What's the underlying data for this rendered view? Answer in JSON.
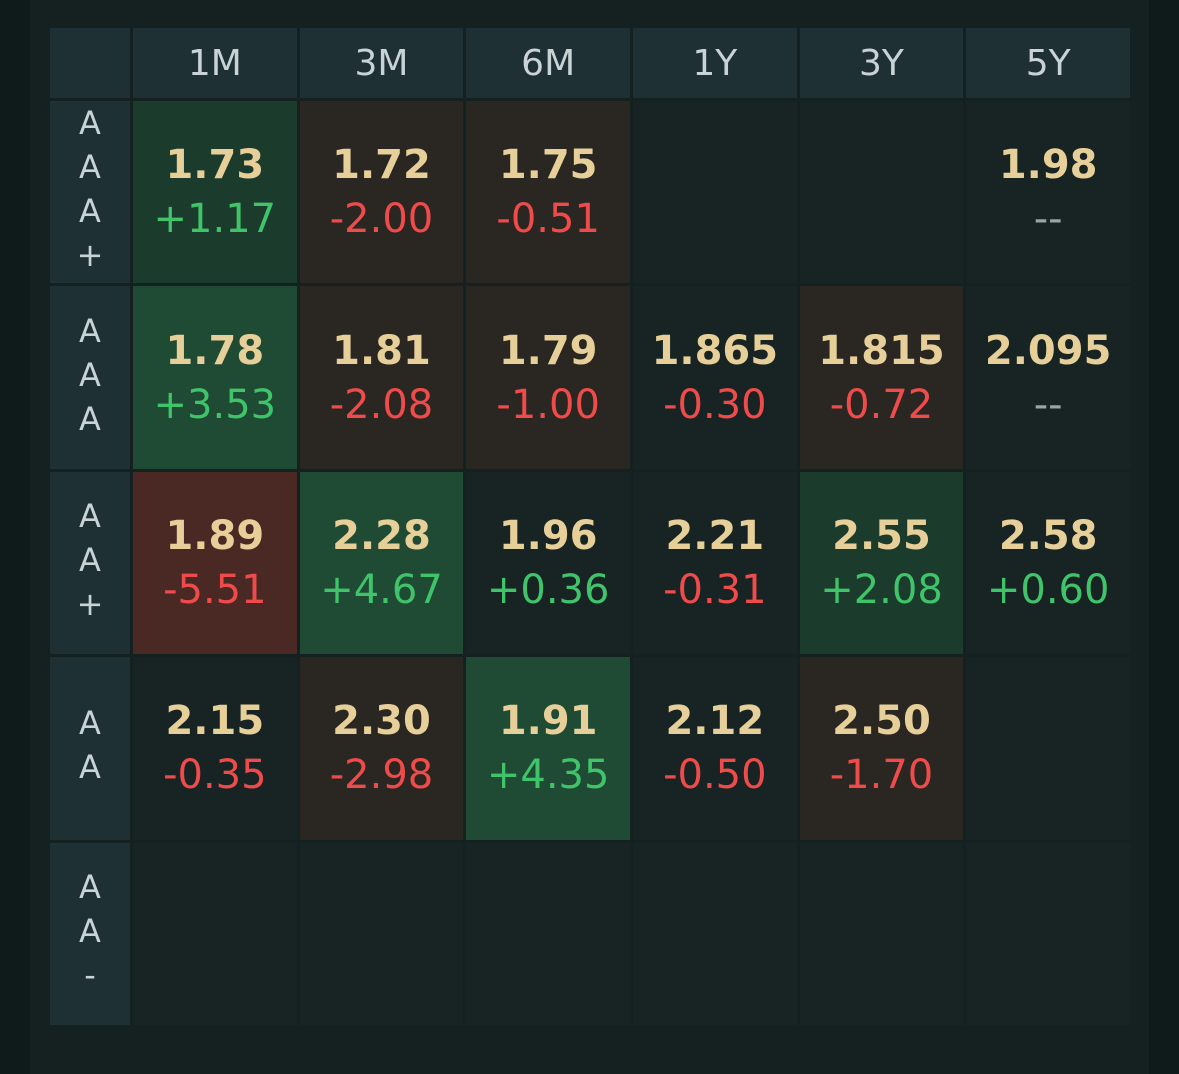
{
  "columns": [
    "1M",
    "3M",
    "6M",
    "1Y",
    "3Y",
    "5Y"
  ],
  "rows": [
    {
      "label": "AAA+",
      "cells": [
        {
          "value": "1.73",
          "change": "+1.17",
          "tone": "g1",
          "dir": "pos"
        },
        {
          "value": "1.72",
          "change": "-2.00",
          "tone": "r1",
          "dir": "neg"
        },
        {
          "value": "1.75",
          "change": "-0.51",
          "tone": "r1",
          "dir": "neg"
        },
        {
          "value": "",
          "change": "",
          "tone": "empty",
          "dir": ""
        },
        {
          "value": "",
          "change": "",
          "tone": "empty",
          "dir": ""
        },
        {
          "value": "1.98",
          "change": "--",
          "tone": "neutral",
          "dir": "flat"
        }
      ]
    },
    {
      "label": "AAA",
      "cells": [
        {
          "value": "1.78",
          "change": "+3.53",
          "tone": "g2",
          "dir": "pos"
        },
        {
          "value": "1.81",
          "change": "-2.08",
          "tone": "r1",
          "dir": "neg"
        },
        {
          "value": "1.79",
          "change": "-1.00",
          "tone": "r1",
          "dir": "neg"
        },
        {
          "value": "1.865",
          "change": "-0.30",
          "tone": "neutral",
          "dir": "neg"
        },
        {
          "value": "1.815",
          "change": "-0.72",
          "tone": "r1",
          "dir": "neg"
        },
        {
          "value": "2.095",
          "change": "--",
          "tone": "neutral",
          "dir": "flat"
        }
      ]
    },
    {
      "label": "AA+",
      "cells": [
        {
          "value": "1.89",
          "change": "-5.51",
          "tone": "r2",
          "dir": "neg"
        },
        {
          "value": "2.28",
          "change": "+4.67",
          "tone": "g2",
          "dir": "pos"
        },
        {
          "value": "1.96",
          "change": "+0.36",
          "tone": "neutral",
          "dir": "pos"
        },
        {
          "value": "2.21",
          "change": "-0.31",
          "tone": "neutral",
          "dir": "neg"
        },
        {
          "value": "2.55",
          "change": "+2.08",
          "tone": "g1",
          "dir": "pos"
        },
        {
          "value": "2.58",
          "change": "+0.60",
          "tone": "neutral",
          "dir": "pos"
        }
      ]
    },
    {
      "label": "AA",
      "cells": [
        {
          "value": "2.15",
          "change": "-0.35",
          "tone": "neutral",
          "dir": "neg"
        },
        {
          "value": "2.30",
          "change": "-2.98",
          "tone": "r1",
          "dir": "neg"
        },
        {
          "value": "1.91",
          "change": "+4.35",
          "tone": "g2",
          "dir": "pos"
        },
        {
          "value": "2.12",
          "change": "-0.50",
          "tone": "neutral",
          "dir": "neg"
        },
        {
          "value": "2.50",
          "change": "-1.70",
          "tone": "r1",
          "dir": "neg"
        },
        {
          "value": "",
          "change": "",
          "tone": "empty",
          "dir": ""
        }
      ]
    },
    {
      "label": "AA-",
      "cells": [
        {
          "value": "",
          "change": "",
          "tone": "empty",
          "dir": ""
        },
        {
          "value": "",
          "change": "",
          "tone": "empty",
          "dir": ""
        },
        {
          "value": "",
          "change": "",
          "tone": "empty",
          "dir": ""
        },
        {
          "value": "",
          "change": "",
          "tone": "empty",
          "dir": ""
        },
        {
          "value": "",
          "change": "",
          "tone": "empty",
          "dir": ""
        },
        {
          "value": "",
          "change": "",
          "tone": "empty",
          "dir": ""
        }
      ]
    }
  ]
}
